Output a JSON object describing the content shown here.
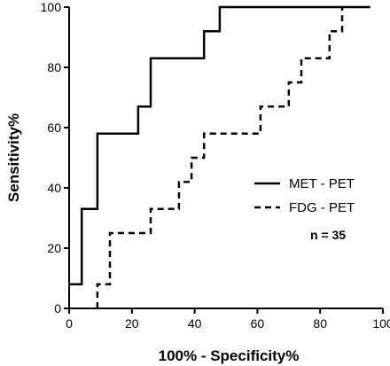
{
  "chart_data": {
    "type": "line",
    "xlabel": "100% - Specificity%",
    "ylabel": "Sensitivity%",
    "xlim": [
      0,
      100
    ],
    "ylim": [
      0,
      100
    ],
    "xticks": [
      0,
      20,
      40,
      60,
      80,
      100
    ],
    "yticks": [
      0,
      20,
      40,
      60,
      80,
      100
    ],
    "grid": false,
    "legend_position": "right",
    "annotation": "n = 35",
    "series": [
      {
        "name": "MET - PET",
        "style": "solid",
        "color": "#000000",
        "x": [
          0,
          4,
          4,
          9,
          9,
          22,
          22,
          26,
          26,
          43,
          43,
          48,
          48,
          96
        ],
        "y": [
          8,
          8,
          33,
          33,
          58,
          58,
          67,
          67,
          83,
          83,
          92,
          92,
          100,
          100
        ]
      },
      {
        "name": "FDG - PET",
        "style": "dashed",
        "color": "#000000",
        "x": [
          9,
          9,
          13,
          13,
          26,
          26,
          35,
          35,
          39,
          39,
          43,
          43,
          61,
          61,
          70,
          70,
          74,
          74,
          83,
          83,
          87,
          87
        ],
        "y": [
          0,
          8,
          8,
          25,
          25,
          33,
          33,
          42,
          42,
          50,
          50,
          58,
          58,
          67,
          67,
          75,
          75,
          83,
          83,
          92,
          92,
          100
        ]
      }
    ]
  }
}
